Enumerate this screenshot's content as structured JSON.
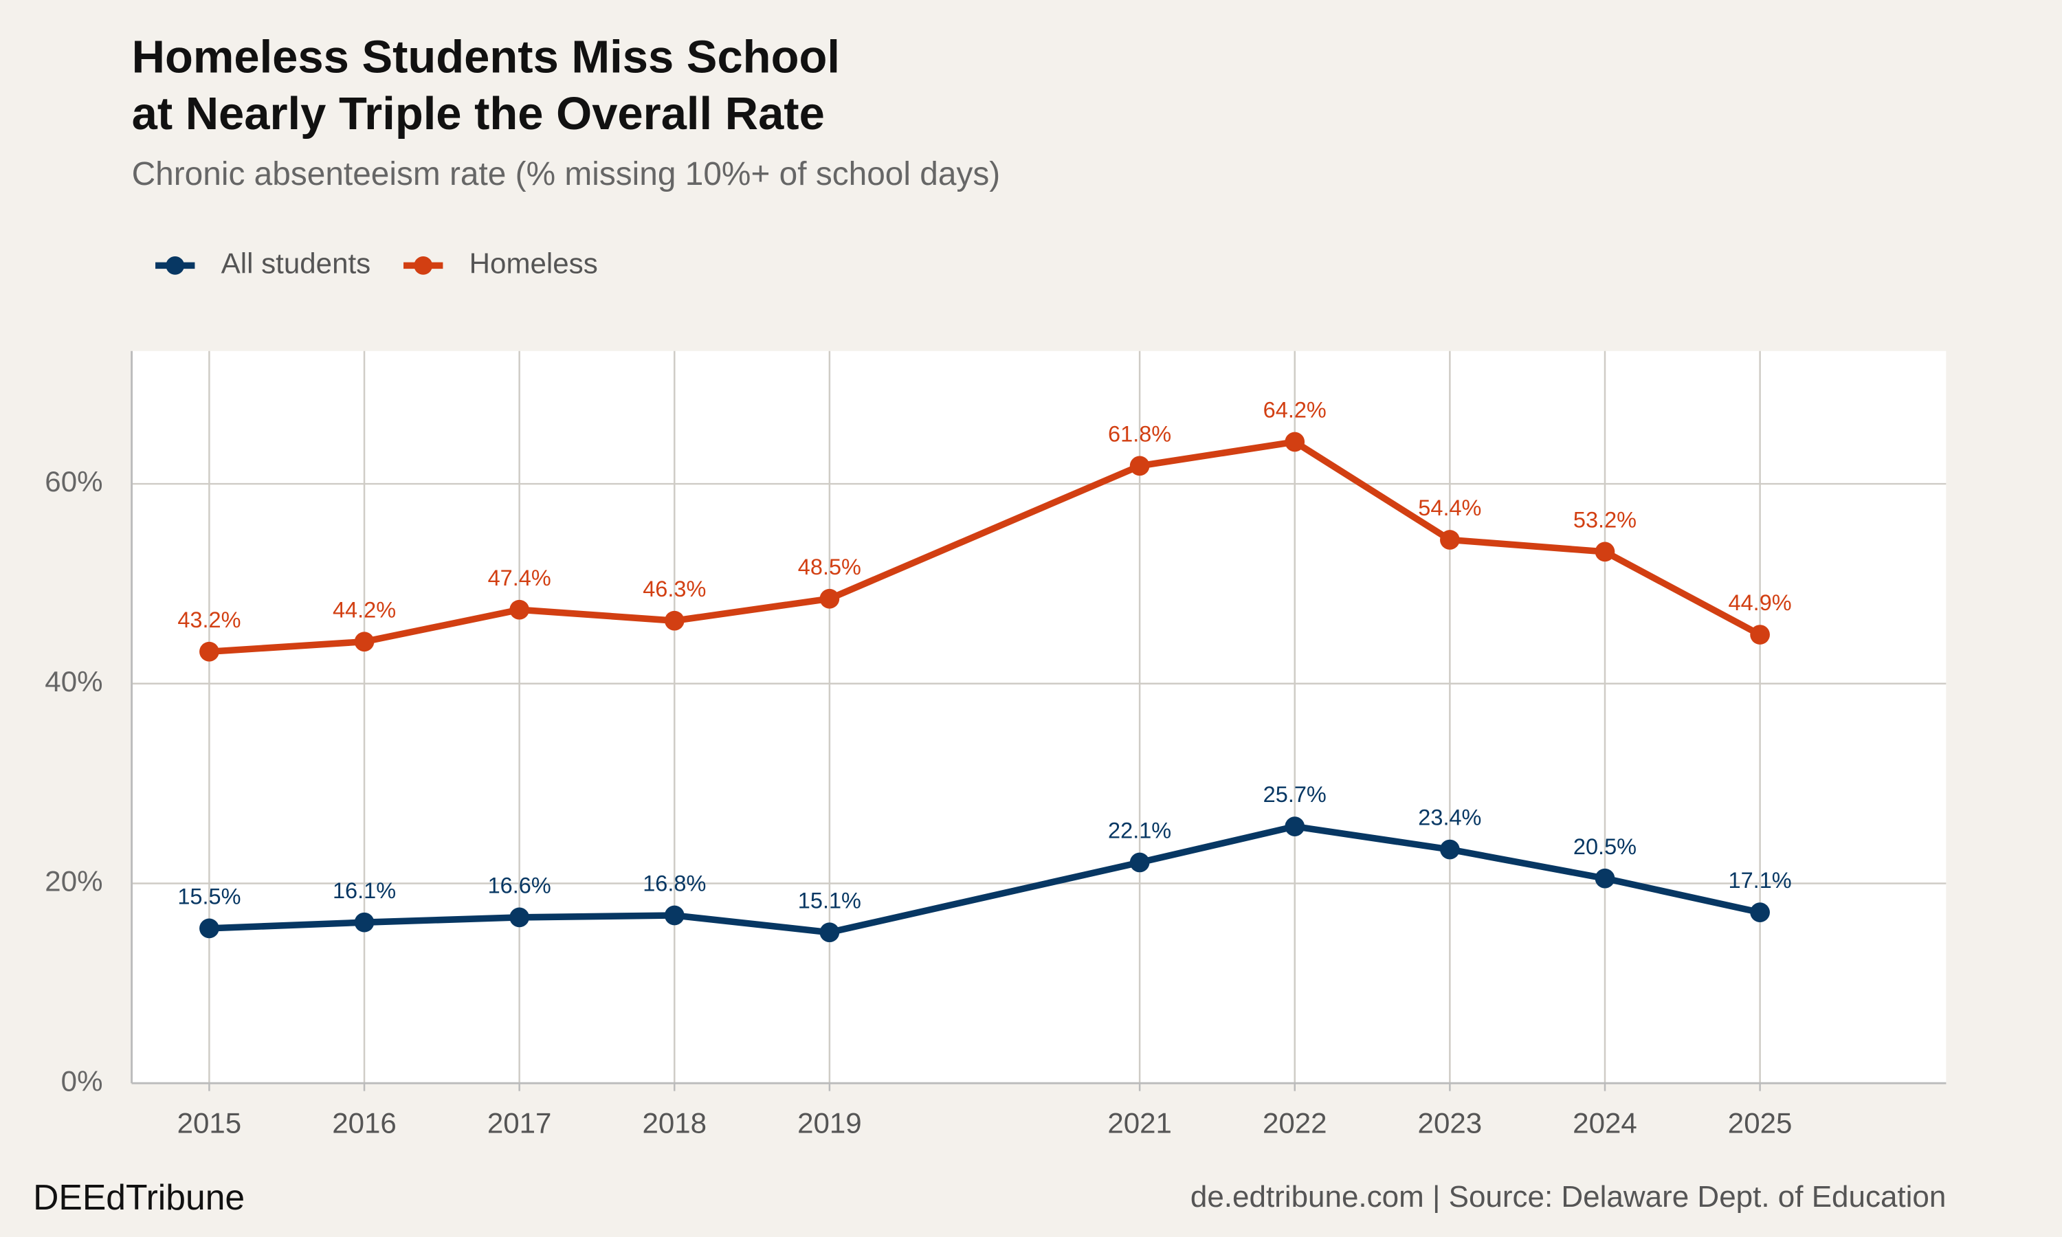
{
  "chart_data": {
    "type": "line",
    "title": [
      "Homeless Students Miss School",
      "at Nearly Triple the Overall Rate"
    ],
    "subtitle": "Chronic absenteeism rate (% missing 10%+ of school days)",
    "x": [
      2015,
      2016,
      2017,
      2018,
      2019,
      2021,
      2022,
      2023,
      2024,
      2025
    ],
    "series": [
      {
        "name": "All students",
        "color": "#073763",
        "values": [
          15.5,
          16.1,
          16.6,
          16.8,
          15.1,
          22.1,
          25.7,
          23.4,
          20.5,
          17.1
        ],
        "value_labels": [
          "15.5%",
          "16.1%",
          "16.6%",
          "16.8%",
          "15.1%",
          "22.1%",
          "25.7%",
          "23.4%",
          "20.5%",
          "17.1%"
        ]
      },
      {
        "name": "Homeless",
        "color": "#d23f12",
        "values": [
          43.2,
          44.2,
          47.4,
          46.3,
          48.5,
          61.8,
          64.2,
          54.4,
          53.2,
          44.9
        ],
        "value_labels": [
          "43.2%",
          "44.2%",
          "47.4%",
          "46.3%",
          "48.5%",
          "61.8%",
          "64.2%",
          "54.4%",
          "53.2%",
          "44.9%"
        ]
      }
    ],
    "xlim": [
      2014.5,
      2026.2
    ],
    "xticks": [
      2015,
      2016,
      2017,
      2018,
      2019,
      2021,
      2022,
      2023,
      2024,
      2025
    ],
    "ylim": [
      0,
      73.3
    ],
    "yticks": [
      {
        "value": 0,
        "label": "0%"
      },
      {
        "value": 20,
        "label": "20%"
      },
      {
        "value": 40,
        "label": "40%"
      },
      {
        "value": 60,
        "label": "60%"
      }
    ],
    "grid": true,
    "legend": "top-left",
    "brand": "DEEdTribune",
    "source": "de.edtribune.com | Source: Delaware Dept. of Education"
  }
}
